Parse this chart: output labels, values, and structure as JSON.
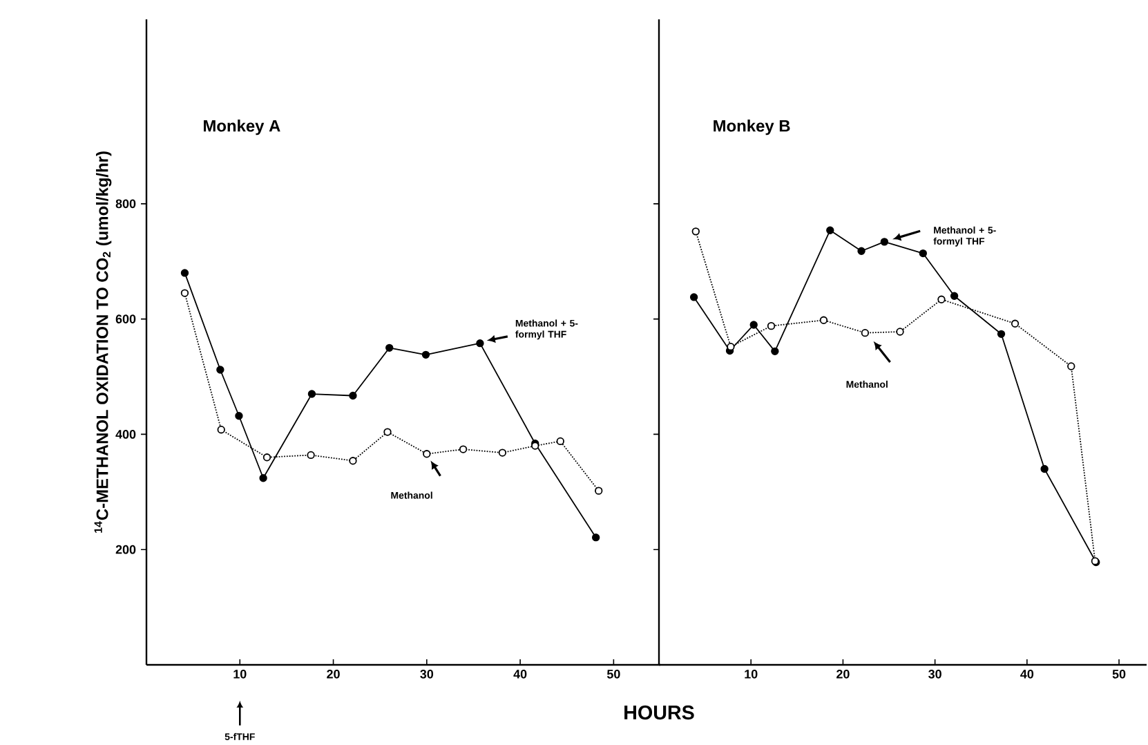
{
  "chart_data": [
    {
      "type": "line",
      "title": "Monkey A",
      "ylabel": "$^{14}$C-METHANOL OXIDATION TO CO$_{2}$ (umol/kg/hr)",
      "xlim": [
        0,
        55
      ],
      "ylim": [
        0,
        1120
      ],
      "xticks": [
        10,
        20,
        30,
        40,
        50
      ],
      "yticks": [
        200,
        400,
        600,
        800
      ],
      "marker": "circle",
      "series": [
        {
          "color": "#000000",
          "line_style": "solid",
          "x": [
            4.1,
            7.9,
            9.9,
            12.5,
            17.7,
            22.1,
            26.0,
            29.9,
            35.7,
            41.6,
            48.1
          ],
          "values": [
            680,
            512,
            432,
            324,
            470,
            467,
            550,
            538,
            558,
            384,
            221
          ]
        },
        {
          "color": "#000000",
          "line_style": "dotted",
          "x": [
            4.1,
            8.0,
            12.9,
            17.6,
            22.1,
            25.8,
            30.0,
            33.9,
            38.1,
            41.6,
            44.3,
            48.4
          ],
          "values": [
            645,
            408,
            360,
            364,
            354,
            404,
            366,
            374,
            368,
            380,
            388,
            302
          ]
        }
      ],
      "annotations": [
        "Methanol + 5-formyl THF",
        "Methanol",
        "5-fTHF"
      ]
    },
    {
      "type": "line",
      "title": "Monkey B",
      "xlabel": "HOURS",
      "xlim": [
        0,
        53
      ],
      "ylim": [
        0,
        1120
      ],
      "xticks": [
        10,
        20,
        30,
        40,
        50
      ],
      "yticks": [
        200,
        400,
        600,
        800
      ],
      "tick_labels": "x",
      "marker": "circle",
      "series": [
        {
          "color": "#000000",
          "line_style": "solid",
          "x": [
            3.8,
            7.7,
            10.3,
            12.6,
            18.6,
            22.0,
            24.5,
            28.7,
            32.1,
            37.2,
            41.9,
            47.5
          ],
          "values": [
            638,
            545,
            590,
            544,
            754,
            718,
            734,
            714,
            640,
            574,
            340,
            178
          ]
        },
        {
          "color": "#000000",
          "line_style": "dotted",
          "x": [
            4.0,
            7.8,
            12.2,
            17.9,
            22.4,
            26.2,
            30.7,
            38.7,
            44.8,
            47.4
          ],
          "values": [
            752,
            552,
            588,
            598,
            576,
            578,
            634,
            592,
            518,
            180
          ]
        }
      ],
      "annotations": [
        "Methanol + 5-formyl THF",
        "Methanol"
      ]
    }
  ]
}
